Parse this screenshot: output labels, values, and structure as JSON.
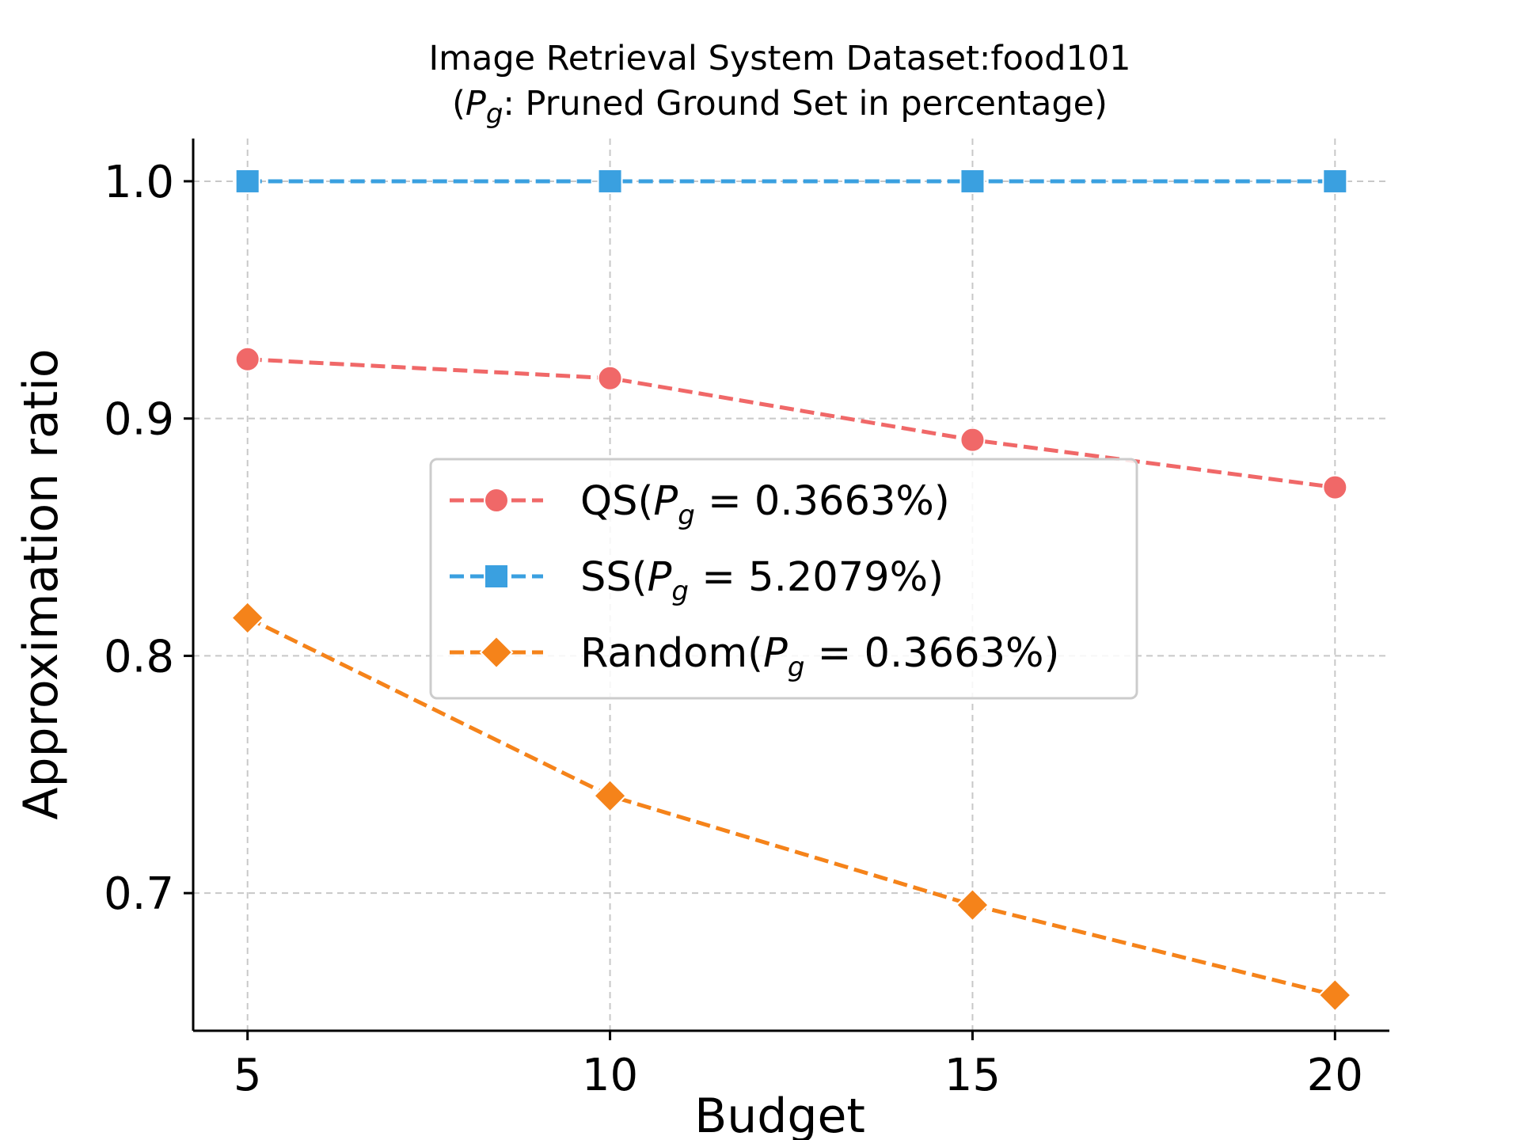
{
  "chart_data": {
    "type": "line",
    "title": "Image Retrieval System Dataset:food101",
    "subtitle": {
      "open": "(",
      "symbol": "P",
      "symbol_sub": "g",
      "rest": ": Pruned Ground Set in percentage)"
    },
    "xlabel": "Budget",
    "ylabel": "Approximation ratio",
    "x": [
      5,
      10,
      15,
      20
    ],
    "xticks": [
      "5",
      "10",
      "15",
      "20"
    ],
    "yticks": [
      "0.7",
      "0.8",
      "0.9",
      "1.0"
    ],
    "ytick_values": [
      0.7,
      0.8,
      0.9,
      1.0
    ],
    "xlim": [
      4.25,
      20.75
    ],
    "ylim": [
      0.642,
      1.018
    ],
    "grid": true,
    "legend_position": "center",
    "series": [
      {
        "name": "QS(Pg = 0.3663%)",
        "name_parts": {
          "prefix": "QS(",
          "symbol": "P",
          "sub": "g",
          "eq": " = 0.3663%)"
        },
        "values": [
          0.925,
          0.917,
          0.891,
          0.871
        ],
        "color": "#f06868",
        "marker": "circle"
      },
      {
        "name": "SS(Pg = 5.2079%)",
        "name_parts": {
          "prefix": "SS(",
          "symbol": "P",
          "sub": "g",
          "eq": " = 5.2079%)"
        },
        "values": [
          1.0,
          1.0,
          1.0,
          1.0
        ],
        "color": "#3aa0e0",
        "marker": "square"
      },
      {
        "name": "Random(Pg = 0.3663%)",
        "name_parts": {
          "prefix": "Random(",
          "symbol": "P",
          "sub": "g",
          "eq": " = 0.3663%)"
        },
        "values": [
          0.816,
          0.741,
          0.695,
          0.657
        ],
        "color": "#f5831a",
        "marker": "diamond"
      }
    ]
  }
}
